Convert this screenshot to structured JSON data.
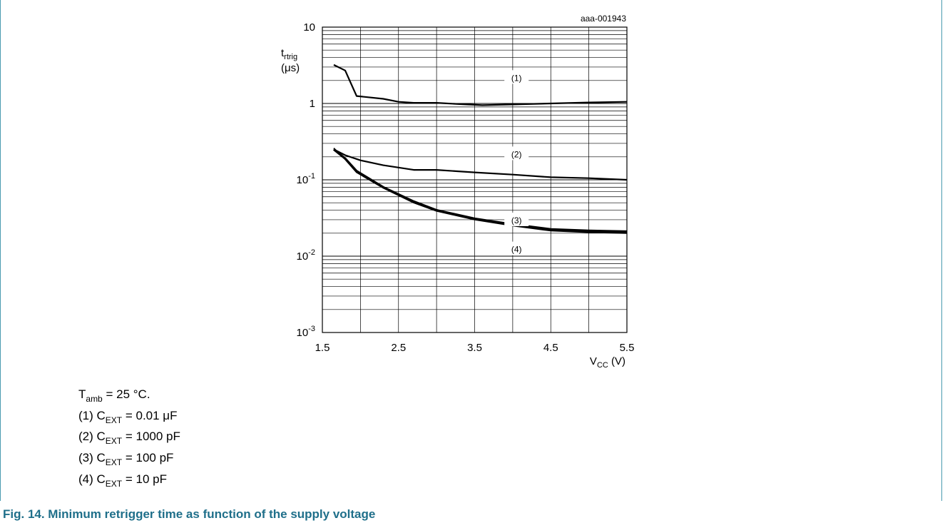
{
  "chart_data": {
    "type": "line",
    "figure_id": "aaa-001943",
    "x_scale": "linear",
    "y_scale": "log",
    "xlim": [
      1.5,
      5.5
    ],
    "ylim": [
      0.001,
      10
    ],
    "x_ticks": [
      "1.5",
      "2.5",
      "3.5",
      "4.5",
      "5.5"
    ],
    "y_ticks": [
      {
        "base": "10",
        "exp": ""
      },
      {
        "base": "1",
        "exp": ""
      },
      {
        "base": "10",
        "exp": "-1"
      },
      {
        "base": "10",
        "exp": "-2"
      },
      {
        "base": "10",
        "exp": "-3"
      }
    ],
    "x_label": {
      "main": "V",
      "sub": "CC",
      "unit": " (V)"
    },
    "y_label": {
      "main": "t",
      "sub": "rtrig",
      "unit": "(μs)"
    },
    "grid": true,
    "series": [
      {
        "label": "(1)",
        "x": [
          1.65,
          1.8,
          1.95,
          2.3,
          2.5,
          2.7,
          3.0,
          3.3,
          3.6,
          4.0,
          4.5,
          5.0,
          5.5
        ],
        "y": [
          3.2,
          2.7,
          1.25,
          1.15,
          1.05,
          1.02,
          1.02,
          0.98,
          0.95,
          0.97,
          1.0,
          1.03,
          1.05
        ]
      },
      {
        "label": "(2)",
        "x": [
          1.65,
          1.8,
          2.0,
          2.3,
          2.7,
          3.0,
          3.5,
          4.0,
          4.5,
          5.0,
          5.5
        ],
        "y": [
          0.25,
          0.21,
          0.18,
          0.155,
          0.135,
          0.135,
          0.125,
          0.117,
          0.108,
          0.105,
          0.1
        ]
      },
      {
        "label": "(3)",
        "x": [
          1.65,
          1.8,
          1.95,
          2.3,
          2.7,
          3.0,
          3.5,
          4.0,
          4.5,
          5.0,
          5.5
        ],
        "y": [
          0.25,
          0.19,
          0.13,
          0.08,
          0.052,
          0.04,
          0.031,
          0.026,
          0.0225,
          0.0215,
          0.021
        ]
      },
      {
        "label": "(4)",
        "x": [
          1.65,
          1.8,
          1.95,
          2.3,
          2.7,
          3.0,
          3.5,
          4.0,
          4.5,
          5.0,
          5.5
        ],
        "y": [
          0.26,
          0.185,
          0.125,
          0.078,
          0.05,
          0.039,
          0.03,
          0.025,
          0.0215,
          0.0205,
          0.02
        ]
      }
    ]
  },
  "conditions": [
    {
      "pre": "T",
      "sub": "amb",
      "post": " = 25 °C."
    },
    {
      "pre": "(1) C",
      "sub": "EXT",
      "post": " = 0.01 μF"
    },
    {
      "pre": "(2) C",
      "sub": "EXT",
      "post": " = 1000 pF"
    },
    {
      "pre": "(3) C",
      "sub": "EXT",
      "post": " = 100 pF"
    },
    {
      "pre": "(4) C",
      "sub": "EXT",
      "post": " = 10 pF"
    }
  ],
  "caption": "Fig. 14.  Minimum retrigger time as function of the supply voltage",
  "colors": {
    "border": "#4a9bb0",
    "caption": "#1f6f8a",
    "line": "#000000"
  }
}
